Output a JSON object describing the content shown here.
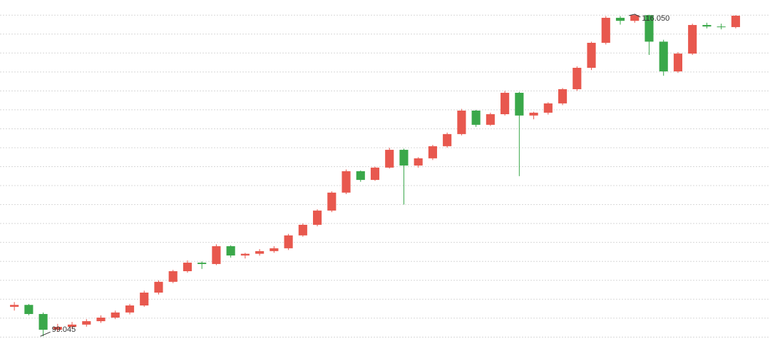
{
  "chart_data": {
    "type": "candlestick",
    "annotations": {
      "high": "116.050",
      "low": "99.045"
    },
    "open": [
      100.6,
      100.7,
      100.22,
      99.39,
      99.54,
      99.66,
      99.84,
      100.03,
      100.3,
      100.67,
      101.35,
      101.92,
      102.48,
      102.93,
      102.86,
      103.8,
      103.31,
      103.4,
      103.54,
      103.69,
      104.37,
      104.93,
      105.68,
      106.63,
      107.76,
      107.3,
      107.95,
      108.89,
      108.06,
      108.44,
      109.08,
      109.72,
      110.96,
      110.21,
      110.77,
      111.9,
      110.7,
      110.85,
      111.34,
      112.09,
      113.22,
      114.54,
      115.86,
      115.7,
      116.0,
      114.6,
      113.03,
      113.97,
      115.48,
      115.4,
      115.37
    ],
    "high": [
      100.85,
      100.75,
      100.3,
      99.7,
      99.8,
      99.95,
      100.15,
      100.4,
      100.75,
      101.45,
      102.0,
      102.55,
      103.05,
      103.0,
      103.9,
      103.85,
      103.45,
      103.65,
      103.8,
      104.45,
      105.0,
      105.75,
      106.7,
      107.85,
      107.8,
      108.0,
      109.0,
      108.95,
      108.5,
      109.15,
      109.8,
      111.05,
      111.0,
      110.85,
      112.0,
      111.95,
      110.9,
      111.4,
      112.15,
      113.3,
      114.6,
      115.95,
      115.95,
      116.05,
      116.02,
      114.7,
      114.05,
      115.55,
      115.6,
      115.55,
      116.0
    ],
    "low": [
      100.4,
      100.15,
      99.045,
      99.3,
      99.45,
      99.55,
      99.75,
      99.95,
      100.2,
      100.6,
      101.25,
      101.85,
      102.4,
      102.6,
      102.8,
      103.2,
      103.15,
      103.3,
      103.45,
      103.6,
      104.3,
      104.85,
      105.6,
      106.55,
      107.2,
      107.25,
      107.9,
      106.0,
      107.95,
      108.35,
      109.0,
      109.65,
      110.1,
      110.15,
      110.7,
      107.5,
      110.5,
      110.75,
      111.25,
      112.0,
      113.1,
      114.45,
      115.5,
      115.6,
      113.9,
      112.8,
      112.95,
      113.9,
      115.3,
      115.25,
      115.3
    ],
    "close": [
      100.7,
      100.22,
      99.39,
      99.54,
      99.66,
      99.84,
      100.03,
      100.3,
      100.67,
      101.35,
      101.92,
      102.48,
      102.93,
      102.86,
      103.8,
      103.31,
      103.4,
      103.54,
      103.69,
      104.37,
      104.93,
      105.68,
      106.63,
      107.76,
      107.3,
      107.95,
      108.89,
      108.06,
      108.44,
      109.08,
      109.72,
      110.96,
      110.21,
      110.77,
      111.9,
      110.7,
      110.85,
      111.34,
      112.09,
      113.22,
      114.54,
      115.86,
      115.7,
      116.0,
      114.6,
      113.03,
      113.97,
      115.48,
      115.4,
      115.37,
      115.97
    ],
    "up_color": "#e8584e",
    "down_color": "#3aa84a",
    "ylim": [
      98.9,
      116.8
    ],
    "yticks": [
      99,
      100,
      101,
      102,
      103,
      104,
      105,
      106,
      107,
      108,
      109,
      110,
      111,
      112,
      113,
      114,
      115,
      116
    ],
    "grid": true
  }
}
